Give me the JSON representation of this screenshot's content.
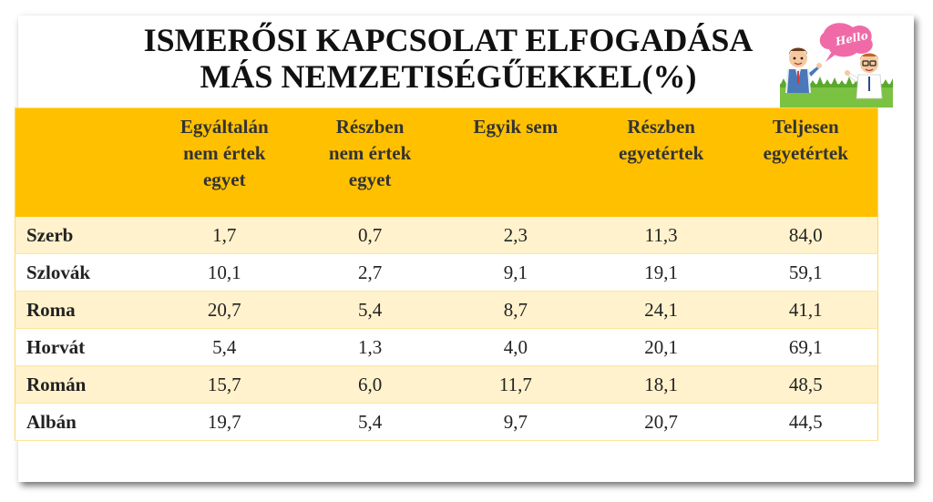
{
  "title": {
    "line1": "ISMERŐSI KAPCSOLAT ELFOGADÁSA",
    "line2": "MÁS NEMZETISÉGŰEKKEL(%)"
  },
  "clipart": {
    "bubble_text": "Hello"
  },
  "table": {
    "headers": [
      "",
      "Egyáltalán nem értek egyet",
      "Részben nem értek egyet",
      "Egyik sem",
      "Részben egyetértek",
      "Teljesen egyetértek"
    ],
    "header_lines": [
      [],
      [
        "Egyáltalán",
        "nem értek",
        "egyet"
      ],
      [
        "Részben",
        "nem értek",
        "egyet"
      ],
      [
        "Egyik sem"
      ],
      [
        "Részben",
        "egyetértek"
      ],
      [
        "Teljesen",
        "egyetértek"
      ]
    ],
    "rows": [
      {
        "name": "Szerb",
        "values": [
          "1,7",
          "0,7",
          "2,3",
          "11,3",
          "84,0"
        ]
      },
      {
        "name": "Szlovák",
        "values": [
          "10,1",
          "2,7",
          "9,1",
          "19,1",
          "59,1"
        ]
      },
      {
        "name": "Roma",
        "values": [
          "20,7",
          "5,4",
          "8,7",
          "24,1",
          "41,1"
        ]
      },
      {
        "name": "Horvát",
        "values": [
          "5,4",
          "1,3",
          "4,0",
          "20,1",
          "69,1"
        ]
      },
      {
        "name": "Román",
        "values": [
          "15,7",
          "6,0",
          "11,7",
          "18,1",
          "48,5"
        ]
      },
      {
        "name": "Albán",
        "values": [
          "19,7",
          "5,4",
          "9,7",
          "20,7",
          "44,5"
        ]
      }
    ]
  },
  "colors": {
    "header_bg": "#ffc000",
    "band_light": "#fff2cc",
    "band_white": "#ffffff"
  }
}
